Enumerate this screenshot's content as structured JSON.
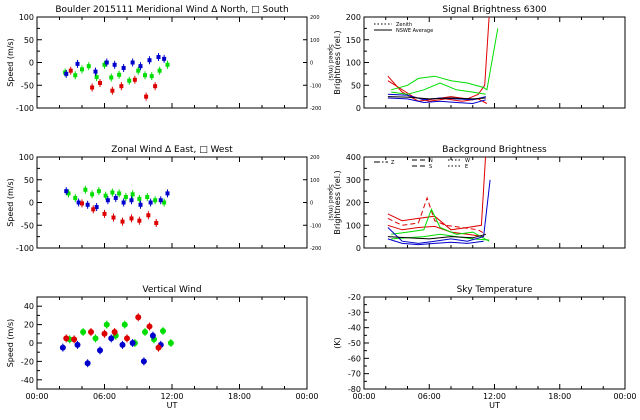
{
  "chart_data": [
    {
      "id": "meridional",
      "type": "scatter",
      "title": "Boulder  2015111    Meridional Wind   Δ North, □ South",
      "xlabel": "",
      "ylabel": "Speed (m/s)",
      "ylabel_right": "Speed (m/s)",
      "xlim": [
        0,
        24
      ],
      "ylim": [
        -100,
        100
      ],
      "yticks": [
        -100,
        -50,
        0,
        50,
        100
      ],
      "yticks_right": [
        -200,
        -100,
        0,
        100,
        200
      ],
      "xtick_labels": [
        "",
        "",
        "",
        "",
        ""
      ],
      "colors": {
        "green": "#00dd00",
        "red": "#dd0000",
        "blue": "#0000cc"
      },
      "series": [
        {
          "color": "green",
          "marker": "square",
          "x": [
            2.5,
            3.4,
            4.0,
            4.6,
            5.3,
            6.0,
            6.6,
            7.3,
            8.2,
            9.0,
            9.6,
            10.2,
            10.9,
            11.6
          ],
          "y": [
            -22,
            -28,
            -15,
            -8,
            -32,
            -5,
            -33,
            -27,
            -40,
            -18,
            -28,
            -30,
            -18,
            -5
          ]
        },
        {
          "color": "blue",
          "marker": "square",
          "x": [
            2.6,
            3.6,
            5.2,
            6.2,
            6.9,
            7.7,
            8.5,
            9.2,
            10.0,
            10.8,
            11.3
          ],
          "y": [
            -25,
            -3,
            -20,
            0,
            -5,
            -12,
            0,
            -8,
            5,
            12,
            8
          ]
        },
        {
          "color": "red",
          "marker": "square",
          "x": [
            3.0,
            4.9,
            5.6,
            6.7,
            7.5,
            8.7,
            9.7,
            10.5
          ],
          "y": [
            -18,
            -55,
            -45,
            -62,
            -52,
            -38,
            -75,
            -52
          ]
        }
      ]
    },
    {
      "id": "zonal",
      "type": "scatter",
      "title": "Zonal Wind     Δ East, □ West",
      "xlabel": "",
      "ylabel": "Speed (m/s)",
      "ylabel_right": "Speed (m/s)",
      "xlim": [
        0,
        24
      ],
      "ylim": [
        -100,
        100
      ],
      "yticks": [
        -100,
        -50,
        0,
        50,
        100
      ],
      "yticks_right": [
        -200,
        -100,
        0,
        100,
        200
      ],
      "xtick_labels": [
        "",
        "",
        "",
        "",
        ""
      ],
      "colors": {
        "green": "#00dd00",
        "red": "#dd0000",
        "blue": "#0000cc"
      },
      "series": [
        {
          "color": "green",
          "marker": "square",
          "x": [
            2.8,
            3.4,
            4.3,
            4.9,
            5.5,
            6.1,
            6.7,
            7.3,
            7.9,
            8.5,
            9.1,
            9.8,
            10.5,
            11.3
          ],
          "y": [
            20,
            10,
            28,
            18,
            25,
            15,
            22,
            20,
            12,
            18,
            8,
            12,
            5,
            0
          ]
        },
        {
          "color": "blue",
          "marker": "square",
          "x": [
            2.6,
            3.7,
            4.5,
            5.3,
            6.3,
            7.0,
            7.7,
            8.4,
            9.2,
            10.1,
            11.0,
            11.6
          ],
          "y": [
            25,
            0,
            -5,
            -10,
            5,
            10,
            0,
            5,
            -5,
            0,
            5,
            20
          ]
        },
        {
          "color": "red",
          "marker": "square",
          "x": [
            4.0,
            5.0,
            6.0,
            6.8,
            7.6,
            8.4,
            9.1,
            9.9,
            10.6
          ],
          "y": [
            -2,
            -15,
            -25,
            -33,
            -42,
            -35,
            -40,
            -28,
            -45
          ]
        }
      ]
    },
    {
      "id": "vertical",
      "type": "scatter",
      "title": "Vertical Wind",
      "xlabel": "UT",
      "ylabel": "Speed (m/s)",
      "xlim": [
        0,
        24
      ],
      "ylim": [
        -50,
        50
      ],
      "yticks": [
        -40,
        -20,
        0,
        20,
        40
      ],
      "xtick_labels": [
        "00:00",
        "06:00",
        "12:00",
        "18:00",
        "00:00"
      ],
      "colors": {
        "green": "#00dd00",
        "red": "#dd0000",
        "blue": "#0000cc"
      },
      "series": [
        {
          "color": "green",
          "marker": "circle",
          "x": [
            2.9,
            4.1,
            5.2,
            6.2,
            7.0,
            7.8,
            8.7,
            9.6,
            10.4,
            11.2,
            11.9
          ],
          "y": [
            4,
            12,
            5,
            20,
            8,
            20,
            0,
            12,
            4,
            13,
            0
          ]
        },
        {
          "color": "blue",
          "marker": "circle",
          "x": [
            2.3,
            3.6,
            4.5,
            5.6,
            6.6,
            7.6,
            8.5,
            9.5,
            10.3,
            11.0
          ],
          "y": [
            -5,
            -2,
            -22,
            -8,
            5,
            -2,
            0,
            -20,
            8,
            -2
          ]
        },
        {
          "color": "red",
          "marker": "circle",
          "x": [
            2.6,
            3.3,
            4.8,
            6.0,
            6.9,
            8.0,
            9.0,
            10.0,
            10.8
          ],
          "y": [
            5,
            4,
            12,
            10,
            12,
            5,
            28,
            18,
            -5
          ]
        }
      ]
    },
    {
      "id": "signal",
      "type": "line",
      "title": "Signal Brightness         6300",
      "xlabel": "",
      "ylabel": "Brightness (rel.)",
      "xlim": [
        0,
        24
      ],
      "ylim": [
        0,
        200
      ],
      "yticks": [
        0,
        50,
        100,
        150,
        200
      ],
      "xtick_labels": [
        "",
        "",
        "",
        "",
        ""
      ],
      "legend": {
        "position": "top-left",
        "items": [
          {
            "label": "Zenith",
            "style": "dotted"
          },
          {
            "label": "NSWE Average",
            "style": "solid"
          }
        ]
      },
      "colors": {
        "green": "#00dd00",
        "red": "#dd0000",
        "blue": "#0000cc",
        "black": "#000000"
      },
      "series": [
        {
          "color": "red",
          "style": "solid",
          "x": [
            2.2,
            3.5,
            5,
            6.5,
            8,
            9.5,
            10.5,
            11.1,
            11.5
          ],
          "y": [
            70,
            35,
            15,
            20,
            25,
            20,
            30,
            50,
            200
          ]
        },
        {
          "color": "red",
          "style": "solid",
          "x": [
            2.2,
            3.2,
            4.5,
            6,
            7.5,
            9,
            10.5,
            11.3
          ],
          "y": [
            60,
            45,
            25,
            15,
            20,
            15,
            20,
            10
          ]
        },
        {
          "color": "green",
          "style": "solid",
          "x": [
            2.5,
            4,
            5,
            6.5,
            8,
            9.5,
            11,
            11.3,
            12.3
          ],
          "y": [
            40,
            50,
            65,
            70,
            60,
            55,
            45,
            40,
            175
          ]
        },
        {
          "color": "green",
          "style": "solid",
          "x": [
            2.5,
            4,
            5.5,
            7,
            8.5,
            10,
            11.2
          ],
          "y": [
            35,
            30,
            40,
            55,
            40,
            35,
            30
          ]
        },
        {
          "color": "blue",
          "style": "solid",
          "x": [
            2.2,
            4,
            5.5,
            7,
            8.5,
            10,
            11.2
          ],
          "y": [
            30,
            28,
            18,
            22,
            20,
            18,
            25
          ]
        },
        {
          "color": "blue",
          "style": "solid",
          "x": [
            2.2,
            4,
            5.5,
            7,
            8.5,
            10,
            11.2
          ],
          "y": [
            22,
            20,
            12,
            15,
            12,
            10,
            18
          ]
        },
        {
          "color": "black",
          "style": "solid",
          "x": [
            2.2,
            4,
            6,
            8,
            10,
            11.2
          ],
          "y": [
            25,
            24,
            20,
            22,
            20,
            22
          ]
        }
      ]
    },
    {
      "id": "background",
      "type": "line",
      "title": "Background Brightness",
      "xlabel": "",
      "ylabel": "Brightness (rel.)",
      "xlim": [
        0,
        24
      ],
      "ylim": [
        0,
        400
      ],
      "yticks": [
        0,
        100,
        200,
        300,
        400
      ],
      "xtick_labels": [
        "",
        "",
        "",
        "",
        ""
      ],
      "legend": {
        "position": "top-left",
        "items": [
          {
            "label": "Z",
            "style": "dashdot"
          },
          {
            "label": "N",
            "style": "dashed"
          },
          {
            "label": "S",
            "style": "dashed"
          },
          {
            "label": "W",
            "style": "dotted"
          },
          {
            "label": "E",
            "style": "dotted"
          }
        ]
      },
      "colors": {
        "green": "#00dd00",
        "red": "#dd0000",
        "blue": "#0000cc",
        "black": "#000000"
      },
      "series": [
        {
          "color": "red",
          "style": "solid",
          "x": [
            2.2,
            3.5,
            5,
            6.5,
            8,
            9.5,
            10.8,
            11.2
          ],
          "y": [
            150,
            120,
            130,
            140,
            80,
            90,
            100,
            420
          ]
        },
        {
          "color": "red",
          "style": "dashed",
          "x": [
            2.2,
            3.5,
            5,
            5.8,
            6.5,
            7.5,
            9,
            10.5,
            11.2
          ],
          "y": [
            130,
            100,
            110,
            220,
            120,
            100,
            90,
            80,
            60
          ]
        },
        {
          "color": "red",
          "style": "solid",
          "x": [
            2.2,
            3.5,
            5,
            6.5,
            8,
            9.5,
            11
          ],
          "y": [
            100,
            80,
            90,
            95,
            70,
            60,
            50
          ]
        },
        {
          "color": "green",
          "style": "solid",
          "x": [
            2.5,
            4,
            5.5,
            6.2,
            7,
            8.5,
            10,
            11.5
          ],
          "y": [
            60,
            70,
            80,
            170,
            90,
            60,
            70,
            30
          ]
        },
        {
          "color": "green",
          "style": "solid",
          "x": [
            2.5,
            4,
            5.5,
            7,
            8.5,
            10,
            11.5
          ],
          "y": [
            40,
            45,
            50,
            60,
            50,
            40,
            35
          ]
        },
        {
          "color": "blue",
          "style": "solid",
          "x": [
            2.2,
            3.5,
            5,
            6.5,
            8,
            9.5,
            11,
            11.6
          ],
          "y": [
            90,
            30,
            20,
            30,
            40,
            30,
            50,
            300
          ]
        },
        {
          "color": "blue",
          "style": "solid",
          "x": [
            2.2,
            3.5,
            5,
            6.5,
            8,
            9.5,
            11
          ],
          "y": [
            40,
            20,
            15,
            20,
            25,
            20,
            30
          ]
        },
        {
          "color": "black",
          "style": "solid",
          "x": [
            2.2,
            4,
            6,
            8,
            10,
            11.2
          ],
          "y": [
            50,
            45,
            40,
            50,
            45,
            60
          ]
        }
      ]
    },
    {
      "id": "sky",
      "type": "line",
      "title": "Sky Temperature",
      "xlabel": "UT",
      "ylabel": "(K)",
      "xlim": [
        0,
        24
      ],
      "ylim": [
        -80,
        -20
      ],
      "yticks": [
        -80,
        -70,
        -60,
        -50,
        -40,
        -30,
        -20
      ],
      "xtick_labels": [
        "00:00",
        "06:00",
        "12:00",
        "18:00",
        "00:00"
      ],
      "colors": {
        "black": "#000000"
      },
      "series": []
    }
  ]
}
